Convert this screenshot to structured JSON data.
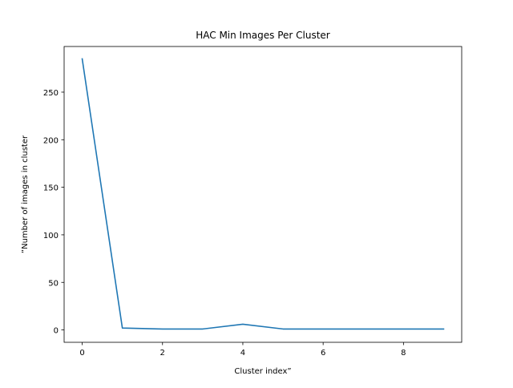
{
  "chart_data": {
    "type": "line",
    "title": "HAC Min Images Per Cluster",
    "xlabel": "Cluster index”",
    "ylabel": "”Number of images in cluster",
    "x": [
      0,
      1,
      2,
      3,
      4,
      5,
      6,
      7,
      8,
      9
    ],
    "series": [
      {
        "values": [
          285,
          2,
          1,
          1,
          6,
          1,
          1,
          1,
          1,
          1
        ],
        "color": "#1f77b4"
      }
    ],
    "xlim": [
      -0.45,
      9.45
    ],
    "ylim": [
      -13,
      298
    ],
    "xticks": [
      0,
      2,
      4,
      6,
      8
    ],
    "yticks": [
      0,
      50,
      100,
      150,
      200,
      250
    ],
    "grid": false,
    "legend": "none"
  }
}
